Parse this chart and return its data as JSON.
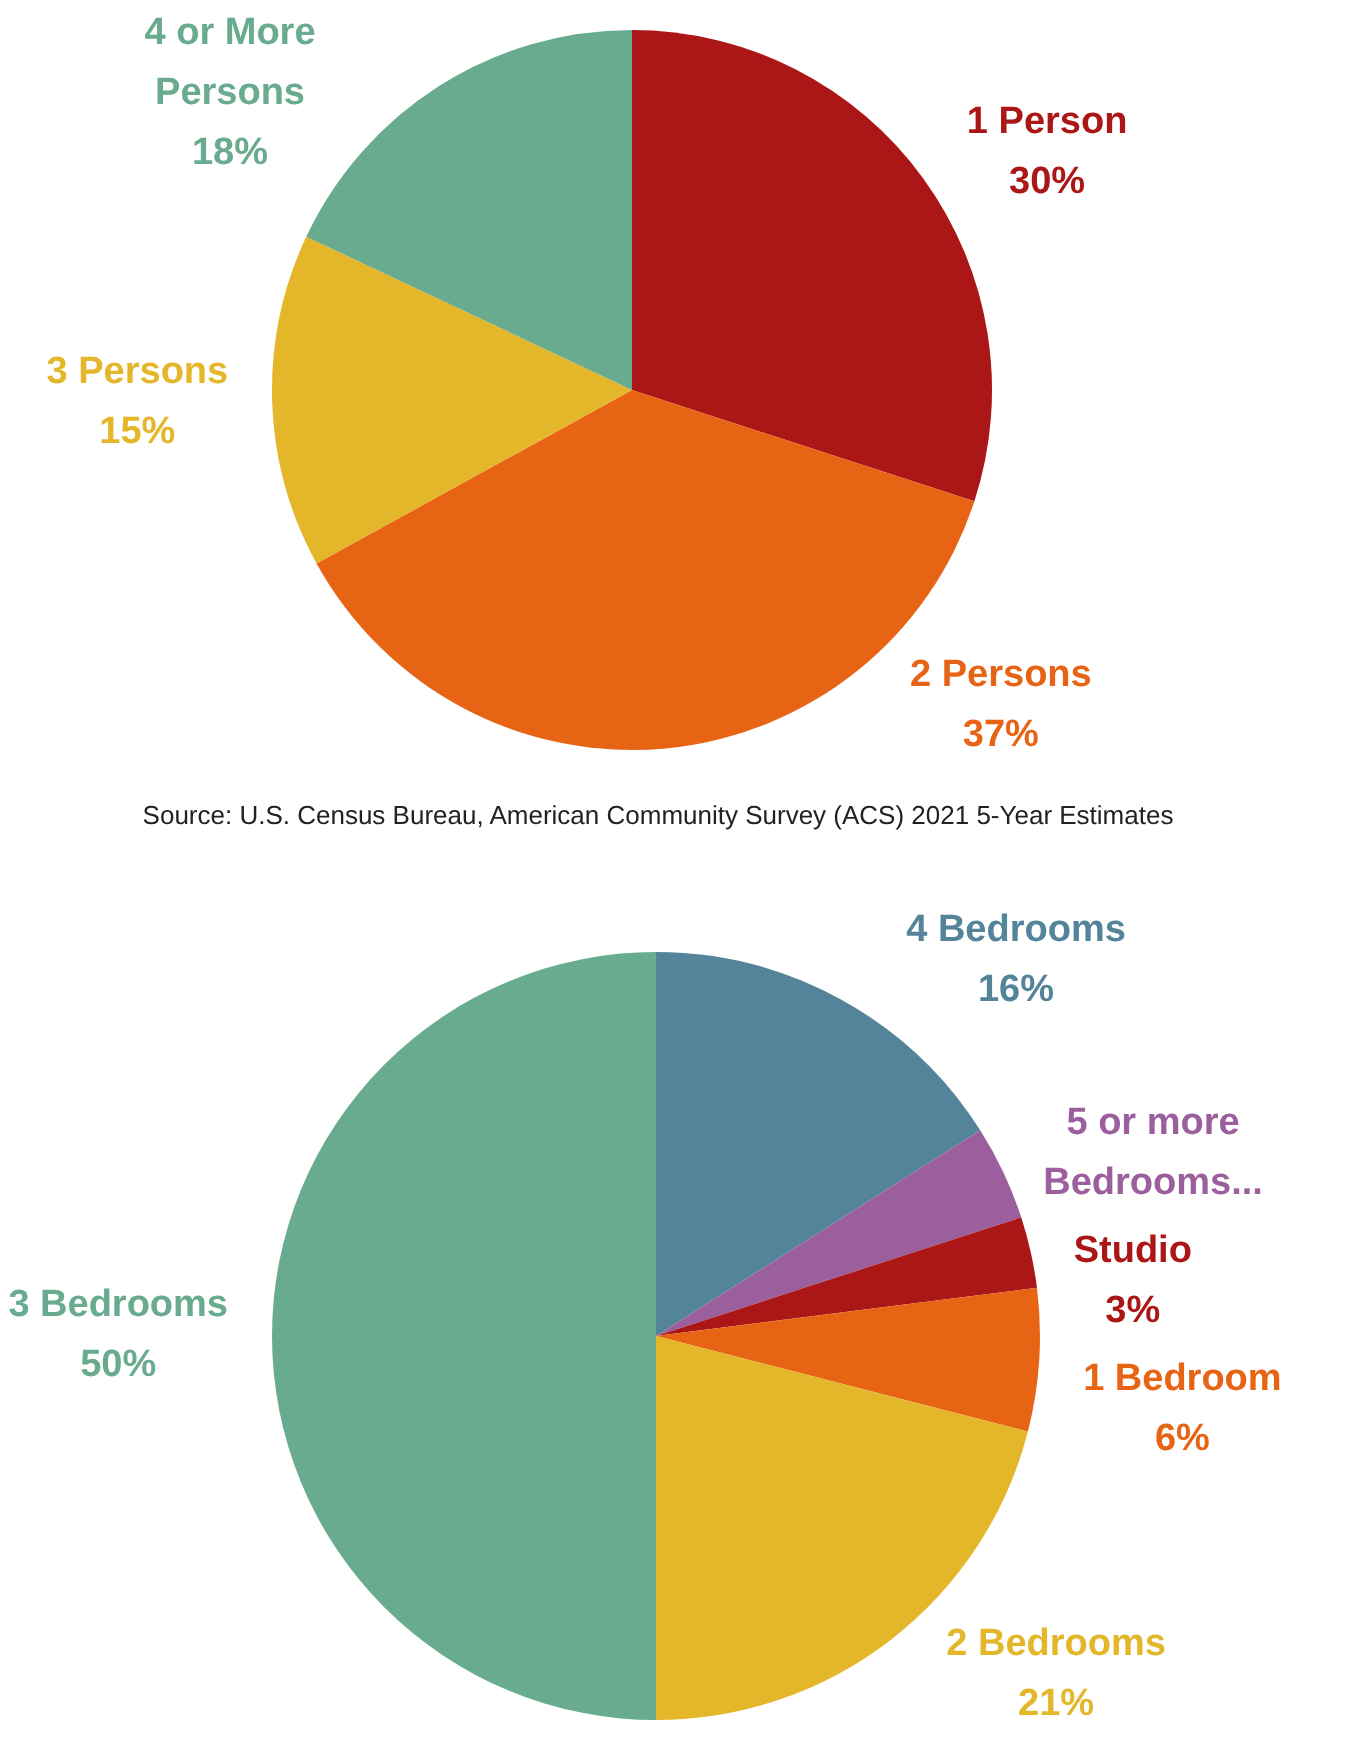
{
  "chart_data": [
    {
      "type": "pie",
      "categories": [
        "1 Person",
        "2 Persons",
        "3 Persons",
        "4 or More Persons"
      ],
      "values": [
        30,
        37,
        15,
        18
      ],
      "colors": [
        "#ab1617",
        "#e86415",
        "#e4b72a",
        "#68ab8e"
      ],
      "value_labels": [
        "30%",
        "37%",
        "15%",
        "18%"
      ],
      "annotations": [
        "Source: U.S. Census Bureau, American Community Survey (ACS) 2021 5-Year Estimates"
      ]
    },
    {
      "type": "pie",
      "categories": [
        "4 Bedrooms",
        "5 or more Bedrooms...",
        "Studio",
        "1 Bedroom",
        "2 Bedrooms",
        "3 Bedrooms"
      ],
      "values": [
        16,
        4,
        3,
        6,
        21,
        50
      ],
      "colors": [
        "#54849a",
        "#9c5f9e",
        "#ab1617",
        "#e86415",
        "#e4b72a",
        "#68ab8e"
      ],
      "value_labels": [
        "16%",
        null,
        "3%",
        "6%",
        "21%",
        "50%"
      ]
    }
  ]
}
